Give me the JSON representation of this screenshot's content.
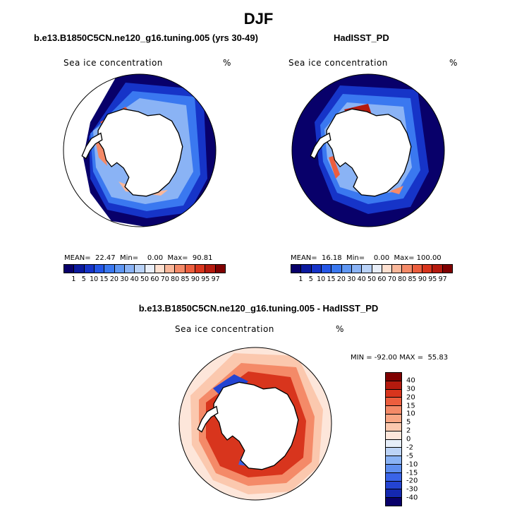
{
  "main_title": "DJF",
  "panels": [
    {
      "title": "b.e13.B1850C5CN.ne120_g16.tuning.005 (yrs 30-49)",
      "field": "Sea ice concentration",
      "unit": "%",
      "stats": "MEAN=  22.47  Min=    0.00  Max=  90.81"
    },
    {
      "title": "HadISST_PD",
      "field": "Sea ice concentration",
      "unit": "%",
      "stats": "MEAN=  16.18  Min=    0.00  Max= 100.00"
    },
    {
      "title": "b.e13.B1850C5CN.ne120_g16.tuning.005 - HadISST_PD",
      "field": "Sea ice concentration",
      "unit": "%",
      "stats": "MIN = -92.00 MAX =  55.83"
    }
  ],
  "colorbar_abs": {
    "labels": [
      "1",
      "5",
      "10",
      "15",
      "20",
      "30",
      "40",
      "50",
      "60",
      "70",
      "80",
      "85",
      "90",
      "95",
      "97"
    ],
    "colors": [
      "#08006a",
      "#0b1a9e",
      "#1634c8",
      "#2456e6",
      "#3a78f0",
      "#5f97f3",
      "#8ab3f5",
      "#b9d2f7",
      "#e8eef8",
      "#fde0d0",
      "#f9b79a",
      "#f48a68",
      "#ec5e3e",
      "#d8351d",
      "#b51a0e",
      "#7f0000"
    ]
  },
  "colorbar_diff": {
    "labels": [
      "40",
      "30",
      "20",
      "15",
      "10",
      "5",
      "2",
      "0",
      "-2",
      "-5",
      "-10",
      "-15",
      "-20",
      "-30",
      "-40"
    ],
    "colors": [
      "#7f0000",
      "#b51a0e",
      "#d8351d",
      "#ec5e3e",
      "#f48a68",
      "#f9a684",
      "#fbc8ae",
      "#fde6da",
      "#e6eef9",
      "#bcd3f6",
      "#8ab3f5",
      "#5f8ff0",
      "#3a64e8",
      "#2444d2",
      "#1428b0",
      "#08006a"
    ]
  },
  "icons": [
    "antarctica-coastline",
    "polar-stereographic-disc"
  ]
}
